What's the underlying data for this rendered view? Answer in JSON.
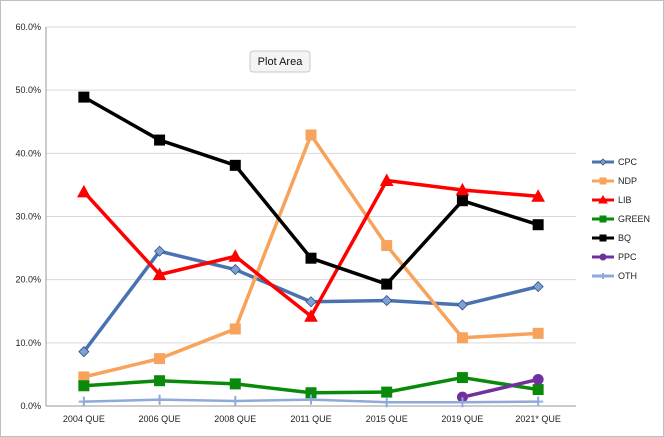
{
  "tooltip": {
    "label": "Plot Area"
  },
  "chart_data": {
    "type": "line",
    "categories": [
      "2004 QUE",
      "2006 QUE",
      "2008 QUE",
      "2011 QUE",
      "2015 QUE",
      "2019 QUE",
      "2021* QUE"
    ],
    "y_ticks": [
      "0.0%",
      "10.0%",
      "20.0%",
      "30.0%",
      "40.0%",
      "50.0%",
      "60.0%"
    ],
    "ylim": [
      0,
      60
    ],
    "grid": true,
    "legend_position": "right",
    "series": [
      {
        "name": "CPC",
        "color": "#4a72b0",
        "marker": "diamond",
        "values": [
          8.6,
          24.5,
          21.6,
          16.5,
          16.7,
          16.0,
          18.9
        ]
      },
      {
        "name": "NDP",
        "color": "#f7a35c",
        "marker": "square",
        "values": [
          4.6,
          7.5,
          12.2,
          42.9,
          25.4,
          10.8,
          11.5
        ]
      },
      {
        "name": "LIB",
        "color": "#ff0000",
        "marker": "triangle",
        "values": [
          33.9,
          20.8,
          23.7,
          14.2,
          35.7,
          34.2,
          33.2
        ]
      },
      {
        "name": "GREEN",
        "color": "#0a8a0a",
        "marker": "square",
        "values": [
          3.2,
          4.0,
          3.5,
          2.1,
          2.2,
          4.5,
          2.6
        ]
      },
      {
        "name": "BQ",
        "color": "#000000",
        "marker": "square",
        "values": [
          48.9,
          42.1,
          38.1,
          23.4,
          19.3,
          32.5,
          28.7
        ]
      },
      {
        "name": "PPC",
        "color": "#7030a0",
        "marker": "circle",
        "values": [
          null,
          null,
          null,
          null,
          null,
          1.4,
          4.2
        ]
      },
      {
        "name": "OTH",
        "color": "#8eaadb",
        "marker": "cross",
        "values": [
          0.7,
          1.0,
          0.8,
          1.0,
          0.6,
          0.6,
          0.7
        ]
      }
    ]
  }
}
